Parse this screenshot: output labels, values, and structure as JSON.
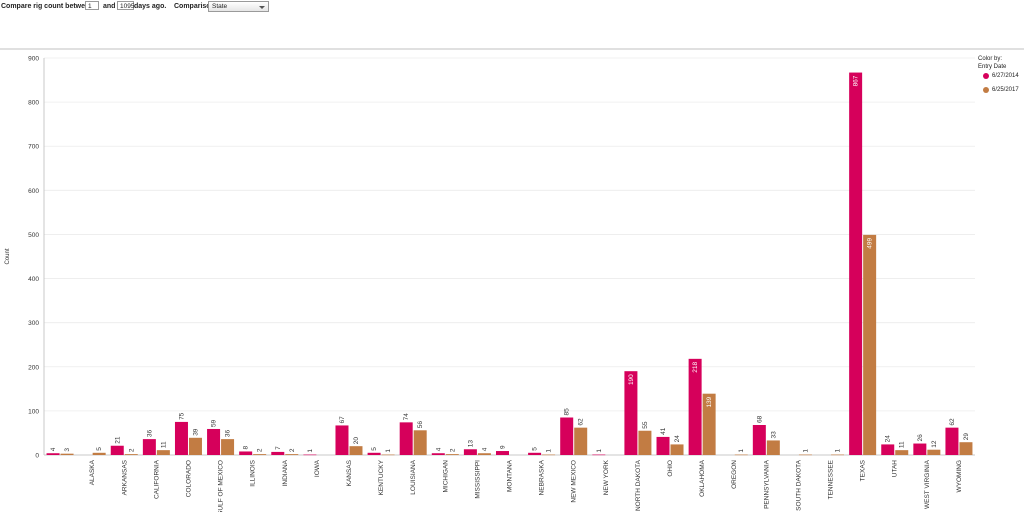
{
  "controls": {
    "label_compare": "Compare rig count between",
    "from_days": "1",
    "label_and": "and",
    "to_days": "1095",
    "label_days_ago": "days ago.",
    "label_comparison_by": "Comparison By:",
    "comparison_by": "State"
  },
  "legend": {
    "title": "Color by:",
    "subtitle": "Entry Date"
  },
  "chart_data": {
    "type": "bar",
    "ylabel": "Count",
    "xlabel": "",
    "ylim": [
      0,
      900
    ],
    "yticks": [
      0,
      100,
      200,
      300,
      400,
      500,
      600,
      700,
      800,
      900
    ],
    "grid": true,
    "legend_placement": "right",
    "categories": [
      "",
      "ALASKA",
      "ARKANSAS",
      "CALIFORNIA",
      "COLORADO",
      "GULF OF MEXICO",
      "ILLINOIS",
      "INDIANA",
      "IOWA",
      "KANSAS",
      "KENTUCKY",
      "LOUISIANA",
      "MICHIGAN",
      "MISSISSIPPI",
      "MONTANA",
      "NEBRASKA",
      "NEW MEXICO",
      "NEW YORK",
      "NORTH DAKOTA",
      "OHIO",
      "OKLAHOMA",
      "OREGON",
      "PENNSYLVANIA",
      "SOUTH DAKOTA",
      "TENNESSEE",
      "TEXAS",
      "UTAH",
      "WEST VIRGINIA",
      "WYOMING"
    ],
    "series": [
      {
        "name": "6/27/2014",
        "color": "#d6005b",
        "values": [
          4,
          null,
          21,
          36,
          75,
          59,
          8,
          7,
          1,
          67,
          5,
          74,
          4,
          13,
          9,
          5,
          85,
          1,
          190,
          41,
          218,
          null,
          68,
          null,
          null,
          867,
          24,
          26,
          62
        ]
      },
      {
        "name": "6/25/2017",
        "color": "#c27c43",
        "values": [
          3,
          5,
          2,
          11,
          39,
          36,
          2,
          2,
          null,
          20,
          1,
          56,
          2,
          4,
          null,
          1,
          62,
          null,
          55,
          24,
          139,
          1,
          33,
          1,
          1,
          499,
          11,
          12,
          29
        ]
      }
    ]
  }
}
